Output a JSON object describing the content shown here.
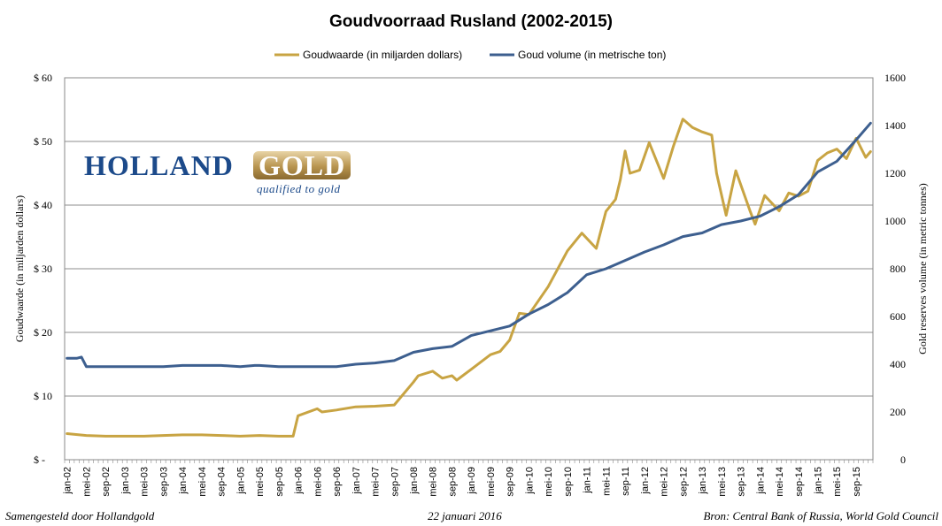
{
  "chart_data": {
    "type": "line",
    "title": "Goudvoorraad Rusland (2002-2015)",
    "legend": {
      "placement": "top-center"
    },
    "ylabel_left": "Goudwaarde  (in miljarden dollars)",
    "ylabel_right": "Gold reserves  volume (in metric tonnes)",
    "yticks_left": [
      "$ -",
      "$ 10",
      "$ 20",
      "$ 30",
      "$ 40",
      "$ 50",
      "$ 60"
    ],
    "yticks_right": [
      "0",
      "200",
      "400",
      "600",
      "800",
      "1000",
      "1200",
      "1400",
      "1600"
    ],
    "ylim_left": [
      0,
      60
    ],
    "ylim_right": [
      0,
      1600
    ],
    "grid": true,
    "x_tick_labels": [
      "jan-02",
      "mei-02",
      "sep-02",
      "jan-03",
      "mei-03",
      "sep-03",
      "jan-04",
      "mei-04",
      "sep-04",
      "jan-05",
      "mei-05",
      "sep-05",
      "jan-06",
      "mei-06",
      "sep-06",
      "jan-07",
      "mei-07",
      "sep-07",
      "jan-08",
      "mei-08",
      "sep-08",
      "jan-09",
      "mei-09",
      "sep-09",
      "jan-10",
      "mei-10",
      "sep-10",
      "jan-11",
      "mei-11",
      "sep-11",
      "jan-12",
      "mei-12",
      "sep-12",
      "jan-13",
      "mei-13",
      "sep-13",
      "jan-14",
      "mei-14",
      "sep-14",
      "jan-15",
      "mei-15",
      "sep-15"
    ],
    "series": [
      {
        "name": "Goudwaarde (in miljarden dollars)",
        "axis": "left",
        "color": "#c8a443",
        "x": [
          "jan-02",
          "mei-02",
          "sep-02",
          "jan-03",
          "mei-03",
          "sep-03",
          "jan-04",
          "mei-04",
          "sep-04",
          "jan-05",
          "mei-05",
          "sep-05",
          "dec-05",
          "jan-06",
          "mei-06",
          "jun-06",
          "sep-06",
          "jan-07",
          "mei-07",
          "sep-07",
          "jan-08",
          "feb-08",
          "mei-08",
          "jul-08",
          "sep-08",
          "okt-08",
          "jan-09",
          "mei-09",
          "jul-09",
          "sep-09",
          "nov-09",
          "jan-10",
          "mei-10",
          "sep-10",
          "dec-10",
          "mrt-11",
          "mei-11",
          "jul-11",
          "aug-11",
          "sep-11",
          "okt-11",
          "dec-11",
          "feb-12",
          "mei-12",
          "jul-12",
          "sep-12",
          "nov-12",
          "jan-13",
          "mrt-13",
          "apr-13",
          "jun-13",
          "aug-13",
          "nov-13",
          "dec-13",
          "feb-14",
          "mei-14",
          "jul-14",
          "sep-14",
          "nov-14",
          "jan-15",
          "mrt-15",
          "mei-15",
          "jul-15",
          "sep-15",
          "nov-15",
          "dec-15"
        ],
        "y": [
          4.1,
          3.8,
          3.7,
          3.7,
          3.7,
          3.8,
          3.9,
          3.9,
          3.8,
          3.7,
          3.8,
          3.7,
          3.7,
          6.9,
          8.0,
          7.5,
          7.8,
          8.3,
          8.4,
          8.6,
          12.2,
          13.2,
          13.9,
          12.8,
          13.2,
          12.5,
          14.2,
          16.5,
          17.0,
          18.8,
          23.0,
          22.8,
          27.2,
          32.8,
          35.6,
          33.2,
          39.0,
          40.9,
          44.0,
          48.5,
          45.0,
          45.5,
          49.8,
          44.2,
          49.2,
          53.5,
          52.2,
          51.5,
          51.0,
          45.0,
          38.4,
          45.4,
          39.0,
          37.0,
          41.5,
          39.1,
          41.9,
          41.4,
          42.2,
          47.0,
          48.2,
          48.8,
          47.3,
          50.5,
          47.5,
          48.4
        ]
      },
      {
        "name": "Goud volume (in metrische ton)",
        "axis": "right",
        "color": "#3d5f8f",
        "x": [
          "jan-02",
          "mrt-02",
          "apr-02",
          "mei-02",
          "sep-02",
          "jan-03",
          "mei-03",
          "sep-03",
          "jan-04",
          "mei-04",
          "sep-04",
          "jan-05",
          "apr-05",
          "mei-05",
          "sep-05",
          "jan-06",
          "mei-06",
          "sep-06",
          "jan-07",
          "mei-07",
          "sep-07",
          "jan-08",
          "mei-08",
          "sep-08",
          "jan-09",
          "mei-09",
          "sep-09",
          "jan-10",
          "mei-10",
          "sep-10",
          "jan-11",
          "mei-11",
          "sep-11",
          "jan-12",
          "mei-12",
          "sep-12",
          "jan-13",
          "mei-13",
          "sep-13",
          "jan-14",
          "mei-14",
          "sep-14",
          "jan-15",
          "mei-15",
          "sep-15",
          "dec-15"
        ],
        "y": [
          425,
          425,
          430,
          390,
          390,
          390,
          390,
          390,
          395,
          395,
          395,
          390,
          395,
          395,
          390,
          390,
          390,
          390,
          400,
          405,
          415,
          450,
          465,
          475,
          520,
          540,
          560,
          610,
          650,
          700,
          775,
          800,
          835,
          870,
          900,
          935,
          950,
          985,
          1000,
          1020,
          1060,
          1110,
          1205,
          1250,
          1340,
          1410
        ]
      }
    ]
  },
  "footer": {
    "left": "Samengesteld door Hollandgold",
    "center": "22 januari 2016",
    "right": "Bron: Central Bank of Russia, World Gold Council"
  },
  "logo": {
    "holland": "HOLLAND",
    "gold": "GOLD",
    "tagline": "qualified to gold"
  }
}
